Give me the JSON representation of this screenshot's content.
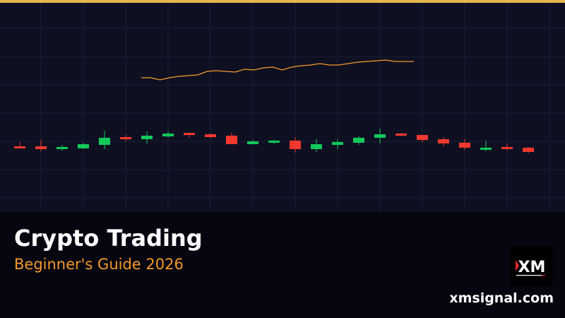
{
  "banner": {
    "title": "Crypto Trading",
    "subtitle": "Beginner's Guide 2026",
    "website": "xmsignal.com",
    "logo_text": "XM"
  },
  "colors": {
    "accent_bar": "#e3b84c",
    "background": "#0e1022",
    "panel": "#05060f",
    "bullish": "#13c95a",
    "bearish": "#f2382f",
    "line": "#f39a2b",
    "subtitle": "#f39a2b"
  },
  "chart_data": {
    "type": "candlestick",
    "grid": true,
    "candles": [
      {
        "o": 93,
        "c": 91,
        "h": 99,
        "l": 90
      },
      {
        "o": 93,
        "c": 89,
        "h": 102,
        "l": 86
      },
      {
        "o": 89,
        "c": 92,
        "h": 95,
        "l": 87
      },
      {
        "o": 90,
        "c": 96,
        "h": 98,
        "l": 89
      },
      {
        "o": 95,
        "c": 105,
        "h": 115,
        "l": 89
      },
      {
        "o": 106,
        "c": 103,
        "h": 109,
        "l": 100
      },
      {
        "o": 103,
        "c": 108,
        "h": 114,
        "l": 97
      },
      {
        "o": 107,
        "c": 111,
        "h": 114,
        "l": 105
      },
      {
        "o": 112,
        "c": 109,
        "h": 112,
        "l": 105
      },
      {
        "o": 110,
        "c": 106,
        "h": 112,
        "l": 104
      },
      {
        "o": 108,
        "c": 96,
        "h": 112,
        "l": 96
      },
      {
        "o": 96,
        "c": 100,
        "h": 102,
        "l": 96
      },
      {
        "o": 98,
        "c": 101,
        "h": 102,
        "l": 96
      },
      {
        "o": 101,
        "c": 89,
        "h": 106,
        "l": 84
      },
      {
        "o": 89,
        "c": 96,
        "h": 103,
        "l": 85
      },
      {
        "o": 95,
        "c": 99,
        "h": 103,
        "l": 89
      },
      {
        "o": 98,
        "c": 105,
        "h": 107,
        "l": 95
      },
      {
        "o": 105,
        "c": 110,
        "h": 118,
        "l": 97
      },
      {
        "o": 111,
        "c": 108,
        "h": 112,
        "l": 107
      },
      {
        "o": 109,
        "c": 102,
        "h": 109,
        "l": 99
      },
      {
        "o": 103,
        "c": 97,
        "h": 106,
        "l": 93
      },
      {
        "o": 98,
        "c": 91,
        "h": 103,
        "l": 88
      },
      {
        "o": 89,
        "c": 91,
        "h": 101,
        "l": 86
      },
      {
        "o": 92,
        "c": 89,
        "h": 97,
        "l": 87
      },
      {
        "o": 91,
        "c": 85,
        "h": 92,
        "l": 83
      }
    ],
    "line_values": [
      190,
      190,
      187,
      190,
      192,
      193,
      194,
      199,
      200,
      199,
      198,
      202,
      201,
      204,
      205,
      201,
      205,
      207,
      208,
      210,
      208,
      208,
      210,
      212,
      213,
      214,
      215,
      213,
      213,
      213
    ]
  }
}
